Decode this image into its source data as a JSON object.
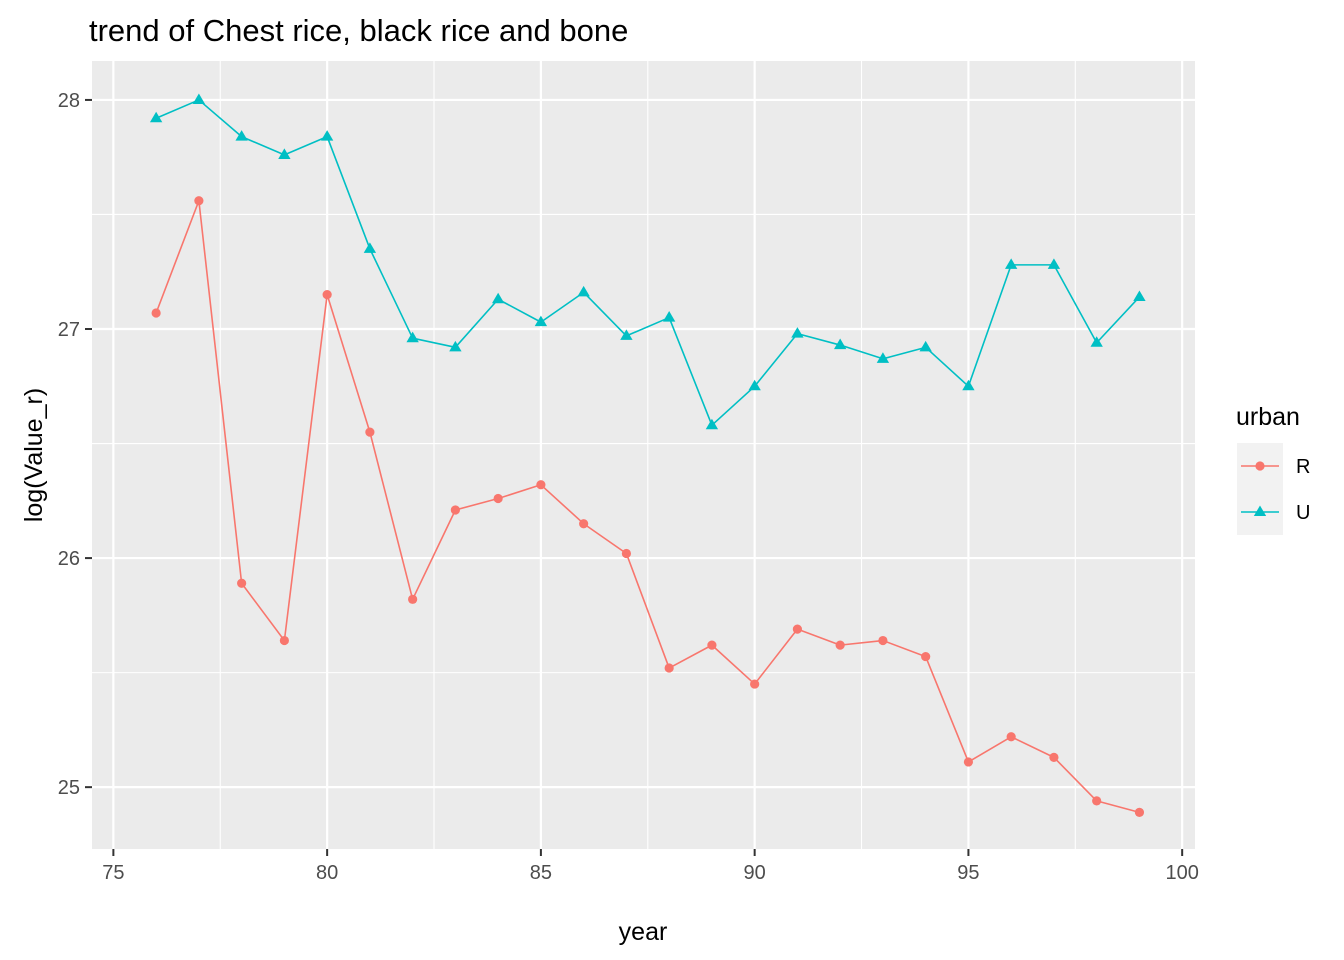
{
  "chart_data": {
    "type": "line",
    "title": "trend of  Chest rice, black rice and bone",
    "xlabel": "year",
    "ylabel": "log(Value_r)",
    "xlim": [
      74.5,
      100.3
    ],
    "ylim": [
      24.73,
      28.17
    ],
    "xticks": [
      75,
      80,
      85,
      90,
      95,
      100
    ],
    "yticks": [
      25,
      26,
      27,
      28
    ],
    "xtick_labels": [
      "75",
      "80",
      "85",
      "90",
      "95",
      "100"
    ],
    "ytick_labels": [
      "25",
      "26",
      "27",
      "28"
    ],
    "grid": true,
    "legend_title": "urban",
    "legend_position": "right",
    "series": [
      {
        "name": "R",
        "color": "#f8766d",
        "marker": "circle",
        "x": [
          76,
          77,
          78,
          79,
          80,
          81,
          82,
          83,
          84,
          85,
          86,
          87,
          88,
          89,
          90,
          91,
          92,
          93,
          94,
          95,
          96,
          97,
          98,
          99
        ],
        "y": [
          27.07,
          27.56,
          25.89,
          25.64,
          27.15,
          26.55,
          25.82,
          26.21,
          26.26,
          26.32,
          26.15,
          26.02,
          25.52,
          25.62,
          25.45,
          25.69,
          25.62,
          25.64,
          25.57,
          25.11,
          25.22,
          25.13,
          24.94,
          24.89
        ]
      },
      {
        "name": "U",
        "color": "#00bfc4",
        "marker": "triangle",
        "x": [
          76,
          77,
          78,
          79,
          80,
          81,
          82,
          83,
          84,
          85,
          86,
          87,
          88,
          89,
          90,
          91,
          92,
          93,
          94,
          95,
          96,
          97,
          98,
          99
        ],
        "y": [
          27.92,
          28.0,
          27.84,
          27.76,
          27.84,
          27.35,
          26.96,
          26.92,
          27.13,
          27.03,
          27.16,
          26.97,
          27.05,
          26.58,
          26.75,
          26.98,
          26.93,
          26.87,
          26.92,
          26.75,
          27.28,
          27.28,
          26.94,
          27.14
        ]
      }
    ]
  }
}
